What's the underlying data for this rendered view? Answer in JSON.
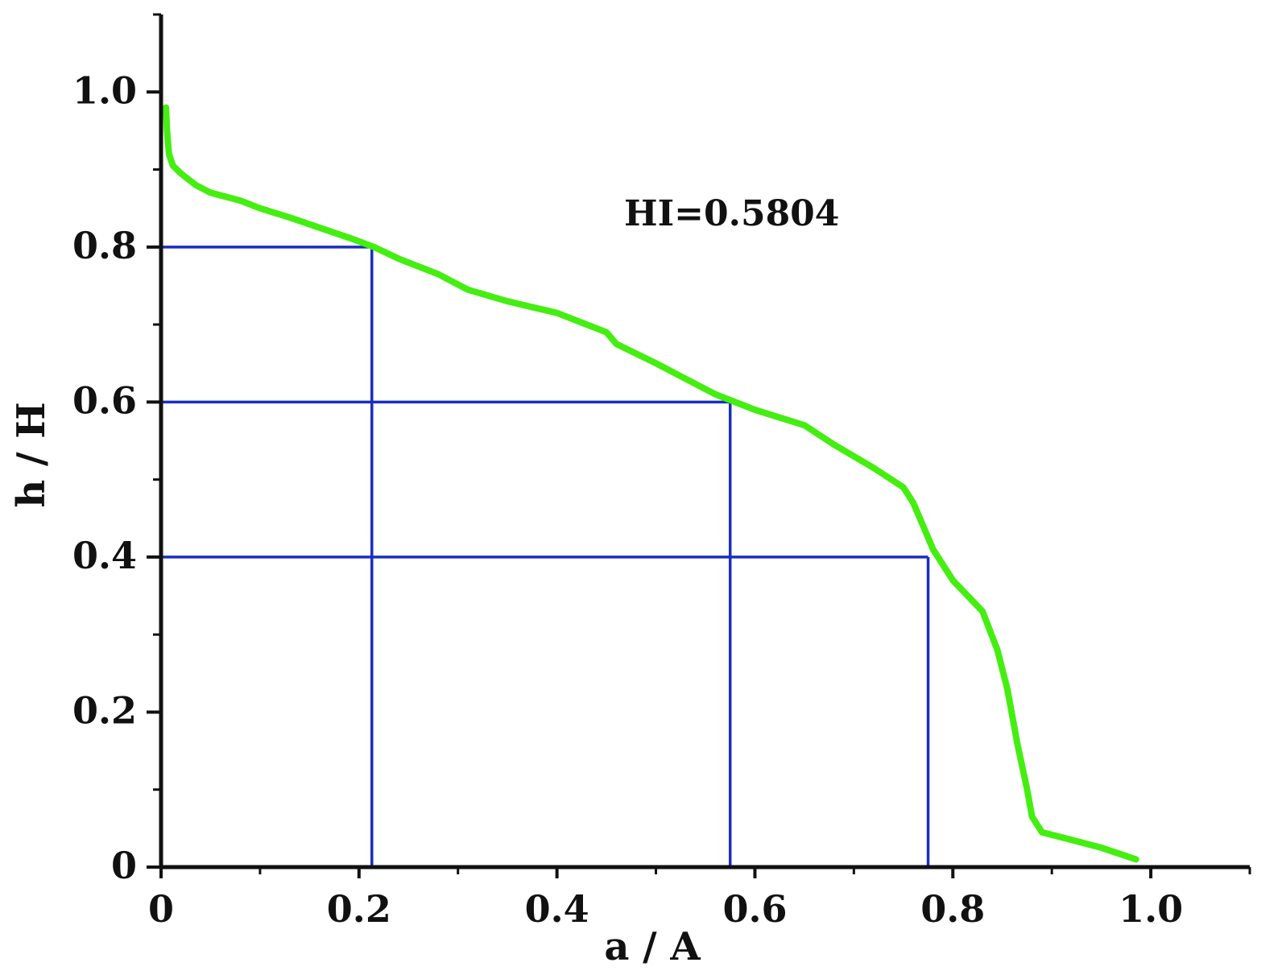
{
  "chart_data": {
    "type": "line",
    "xlabel": "a / A",
    "ylabel": "h / H",
    "xlim": [
      0,
      1.1
    ],
    "ylim": [
      0,
      1.1
    ],
    "x_ticks": [
      {
        "value": 0,
        "label": "0"
      },
      {
        "value": 0.2,
        "label": "0.2"
      },
      {
        "value": 0.4,
        "label": "0.4"
      },
      {
        "value": 0.6,
        "label": "0.6"
      },
      {
        "value": 0.8,
        "label": "0.8"
      },
      {
        "value": 1.0,
        "label": "1.0"
      }
    ],
    "y_ticks": [
      {
        "value": 0,
        "label": "0"
      },
      {
        "value": 0.2,
        "label": "0.2"
      },
      {
        "value": 0.4,
        "label": "0.4"
      },
      {
        "value": 0.6,
        "label": "0.6"
      },
      {
        "value": 0.8,
        "label": "0.8"
      },
      {
        "value": 1.0,
        "label": "1.0"
      }
    ],
    "x_minor_ticks": [
      0.1,
      0.3,
      0.5,
      0.7,
      0.9,
      1.1
    ],
    "y_minor_ticks": [
      0.1,
      0.3,
      0.5,
      0.7,
      0.9,
      1.1
    ],
    "grid": false,
    "annotation": "HI=0.5804",
    "series": [
      {
        "color": "#44ee11",
        "x": [
          0.005,
          0.006,
          0.008,
          0.012,
          0.02,
          0.035,
          0.05,
          0.08,
          0.1,
          0.13,
          0.16,
          0.19,
          0.215,
          0.24,
          0.28,
          0.31,
          0.35,
          0.4,
          0.43,
          0.45,
          0.46,
          0.5,
          0.53,
          0.56,
          0.58,
          0.6,
          0.65,
          0.68,
          0.72,
          0.75,
          0.76,
          0.78,
          0.8,
          0.83,
          0.845,
          0.855,
          0.865,
          0.875,
          0.88,
          0.89,
          0.92,
          0.95,
          0.985
        ],
        "y": [
          0.98,
          0.95,
          0.92,
          0.905,
          0.895,
          0.88,
          0.87,
          0.86,
          0.85,
          0.838,
          0.825,
          0.812,
          0.8,
          0.785,
          0.765,
          0.745,
          0.73,
          0.715,
          0.7,
          0.69,
          0.675,
          0.65,
          0.63,
          0.61,
          0.6,
          0.59,
          0.57,
          0.545,
          0.515,
          0.49,
          0.47,
          0.41,
          0.37,
          0.33,
          0.28,
          0.23,
          0.16,
          0.1,
          0.065,
          0.045,
          0.035,
          0.025,
          0.01
        ]
      }
    ],
    "reference_lines": [
      {
        "x": 0.213,
        "y": 0.8
      },
      {
        "x": 0.575,
        "y": 0.6
      },
      {
        "x": 0.775,
        "y": 0.4
      }
    ],
    "reference_color": "#1a2ec0"
  }
}
